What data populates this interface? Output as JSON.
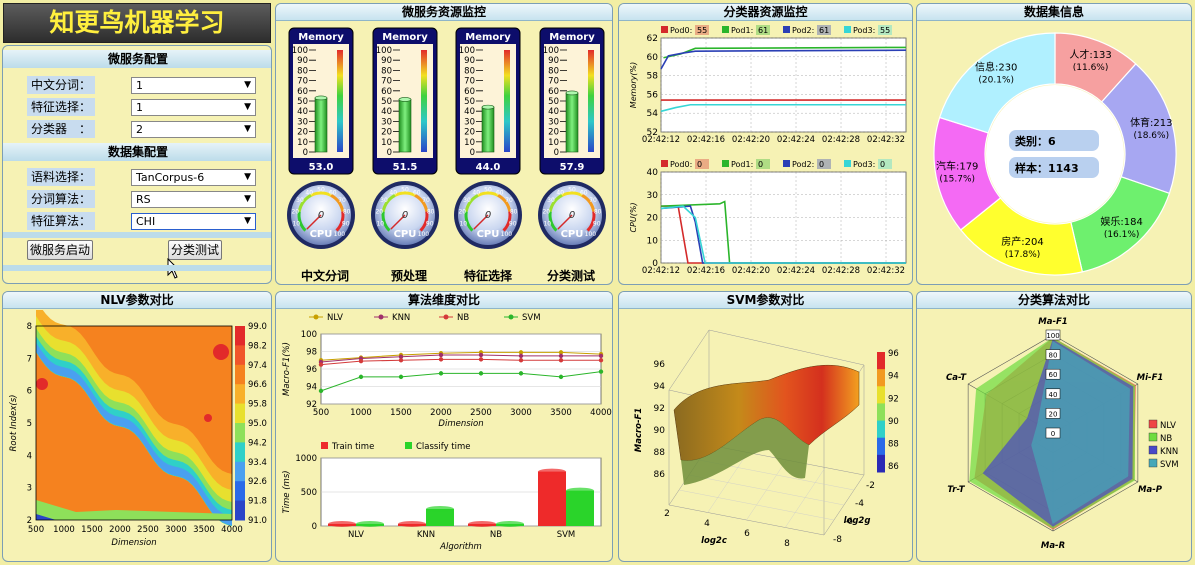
{
  "app": {
    "title": "知更鸟机器学习"
  },
  "microservice_config": {
    "heading": "微服务配置",
    "rows": [
      {
        "label": "中文分词：",
        "value": "1"
      },
      {
        "label": "特征选择：",
        "value": "1"
      },
      {
        "label": "分类器　：",
        "value": "2"
      }
    ]
  },
  "dataset_config": {
    "heading": "数据集配置",
    "rows": [
      {
        "label": "语料选择：",
        "value": "TanCorpus-6"
      },
      {
        "label": "分词算法：",
        "value": "RS"
      },
      {
        "label": "特征算法：",
        "value": "CHI"
      }
    ]
  },
  "buttons": {
    "start": "微服务启动",
    "test": "分类测试"
  },
  "panels": {
    "micro_monitor": "微服务资源监控",
    "classifier_monitor": "分类器资源监控",
    "dataset_info": "数据集信息",
    "nlv_compare": "NLV参数对比",
    "algo_dim": "算法维度对比",
    "svm_compare": "SVM参数对比",
    "classify_compare": "分类算法对比"
  },
  "services": [
    {
      "name": "中文分词",
      "memory": "53.0",
      "memory_value": 53.0,
      "cpu": 0
    },
    {
      "name": "预处理",
      "memory": "51.5",
      "memory_value": 51.5,
      "cpu": 0
    },
    {
      "name": "特征选择",
      "memory": "44.0",
      "memory_value": 44.0,
      "cpu": 0
    },
    {
      "name": "分类测试",
      "memory": "57.9",
      "memory_value": 57.9,
      "cpu": 0
    }
  ],
  "memory_gauge": {
    "title": "Memory",
    "ticks": [
      "100",
      "90",
      "80",
      "70",
      "60",
      "50",
      "40",
      "30",
      "20",
      "10",
      "0"
    ]
  },
  "cpu_gauge": {
    "label": "CPU",
    "value_text": "0",
    "ticks": [
      "10",
      "20",
      "30",
      "40",
      "50",
      "60",
      "70",
      "80",
      "90",
      "100"
    ]
  },
  "pod_memory_chart": {
    "type": "line",
    "ylabel": "Memory(%)",
    "ylim": [
      52,
      62
    ],
    "yticks": [
      "62",
      "60",
      "58",
      "56",
      "54",
      "52"
    ],
    "xticks": [
      "02:42:12",
      "02:42:16",
      "02:42:20",
      "02:42:24",
      "02:42:28",
      "02:42:32"
    ],
    "legend": [
      {
        "name": "Pod0:",
        "value": "55",
        "color": "#d42a2a"
      },
      {
        "name": "Pod1:",
        "value": "61",
        "color": "#2bb52b"
      },
      {
        "name": "Pod2:",
        "value": "61",
        "color": "#2a3fb5"
      },
      {
        "name": "Pod3:",
        "value": "55",
        "color": "#37d6d6"
      }
    ]
  },
  "pod_cpu_chart": {
    "type": "line",
    "ylabel": "CPU(%)",
    "ylim": [
      0,
      40
    ],
    "yticks": [
      "40",
      "30",
      "20",
      "10",
      "0"
    ],
    "xticks": [
      "02:42:12",
      "02:42:16",
      "02:42:20",
      "02:42:24",
      "02:42:28",
      "02:42:32"
    ],
    "legend": [
      {
        "name": "Pod0:",
        "value": "0",
        "color": "#d42a2a"
      },
      {
        "name": "Pod1:",
        "value": "0",
        "color": "#2bb52b"
      },
      {
        "name": "Pod2:",
        "value": "0",
        "color": "#2a3fb5"
      },
      {
        "name": "Pod3:",
        "value": "0",
        "color": "#37d6d6"
      }
    ]
  },
  "chart_data": [
    {
      "type": "pie",
      "center_labels": [
        "类别：6",
        "样本：1143"
      ],
      "slices": [
        {
          "label": "人才",
          "value": 133,
          "percent": "(11.6%)",
          "color": "#f6a0a0"
        },
        {
          "label": "体育",
          "value": 213,
          "percent": "(18.6%)",
          "color": "#a7a7f2"
        },
        {
          "label": "娱乐",
          "value": 184,
          "percent": "(16.1%)",
          "color": "#6ef06e"
        },
        {
          "label": "房产",
          "value": 204,
          "percent": "(17.8%)",
          "color": "#ffff2e"
        },
        {
          "label": "汽车",
          "value": 179,
          "percent": "(15.7%)",
          "color": "#f46af4"
        },
        {
          "label": "信息",
          "value": 230,
          "percent": "(20.1%)",
          "color": "#b0f0ff"
        }
      ]
    },
    {
      "type": "heatmap",
      "xlabel": "Dimension",
      "ylabel": "Root Index(s)",
      "xticks": [
        "500",
        "1000",
        "1500",
        "2000",
        "2500",
        "3000",
        "3500",
        "4000"
      ],
      "yticks": [
        "8",
        "7",
        "6",
        "5",
        "4",
        "3",
        "2"
      ],
      "colorbar": [
        "99.0",
        "98.2",
        "97.4",
        "96.6",
        "95.8",
        "95.0",
        "94.2",
        "93.4",
        "92.6",
        "91.8",
        "91.0"
      ]
    },
    {
      "type": "line",
      "xlabel": "Dimension",
      "ylabel": "Macro-F1(%)",
      "ylim": [
        92,
        100
      ],
      "yticks": [
        "100",
        "98",
        "96",
        "94",
        "92"
      ],
      "x": [
        500,
        1000,
        1500,
        2000,
        2500,
        3000,
        3500,
        4000
      ],
      "series": [
        {
          "name": "NLV",
          "color": "#c8a000",
          "values": [
            97.0,
            97.3,
            97.6,
            97.8,
            97.9,
            97.9,
            97.9,
            97.7
          ]
        },
        {
          "name": "KNN",
          "color": "#a0306a",
          "values": [
            96.8,
            97.2,
            97.4,
            97.6,
            97.6,
            97.5,
            97.5,
            97.5
          ]
        },
        {
          "name": "NB",
          "color": "#d43a3a",
          "values": [
            96.5,
            96.9,
            97.0,
            97.1,
            97.1,
            97.0,
            97.0,
            97.0
          ]
        },
        {
          "name": "SVM",
          "color": "#2bb52b",
          "values": [
            93.5,
            95.1,
            95.1,
            95.5,
            95.5,
            95.5,
            95.1,
            95.7
          ]
        }
      ]
    },
    {
      "type": "bar",
      "xlabel": "Algorithm",
      "ylabel": "Time (ms)",
      "ylim": [
        0,
        1000
      ],
      "yticks": [
        "1000",
        "500",
        "0"
      ],
      "categories": [
        "NLV",
        "KNN",
        "NB",
        "SVM"
      ],
      "series": [
        {
          "name": "Train time",
          "color": "#ee2a2a",
          "values": [
            30,
            30,
            30,
            800
          ]
        },
        {
          "name": "Classify time",
          "color": "#2ad42a",
          "values": [
            30,
            250,
            30,
            520
          ]
        }
      ]
    },
    {
      "type": "heatmap",
      "subtype": "surface-3d",
      "zlabel": "Macro-F1",
      "xlabel": "log2c",
      "ylabel": "log2g",
      "zticks": [
        "96",
        "94",
        "92",
        "90",
        "88",
        "86"
      ],
      "xticks": [
        "2",
        "4",
        "6",
        "8"
      ],
      "yticks": [
        "-2",
        "-4",
        "-6",
        "-8"
      ],
      "colorbar": [
        "96",
        "94",
        "92",
        "90",
        "88",
        "86"
      ]
    },
    {
      "type": "radar",
      "axes": [
        "Ma-F1",
        "Mi-F1",
        "Ma-P",
        "Ma-R",
        "Tr-T",
        "Ca-T"
      ],
      "ticks": [
        "100",
        "80",
        "60",
        "40",
        "20",
        "0"
      ],
      "series": [
        {
          "name": "NLV",
          "color": "#ef4646"
        },
        {
          "name": "NB",
          "color": "#6edc40"
        },
        {
          "name": "KNN",
          "color": "#4848c8"
        },
        {
          "name": "SVM",
          "color": "#46a8b8"
        }
      ]
    }
  ]
}
